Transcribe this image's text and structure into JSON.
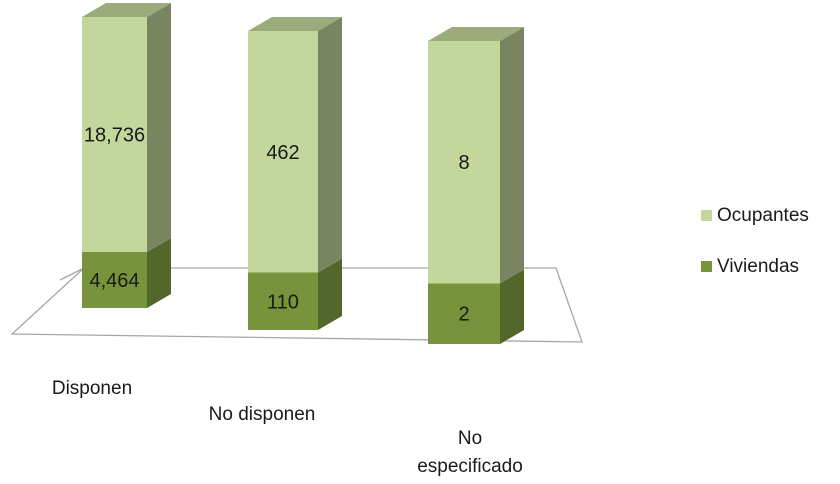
{
  "chart_data": {
    "type": "bar",
    "stacked": true,
    "three_d": true,
    "categories": [
      "Disponen",
      "No disponen",
      "No especificado"
    ],
    "series": [
      {
        "name": "Viviendas",
        "values": [
          4464,
          110,
          2
        ],
        "labels": [
          "4,464",
          "110",
          "2"
        ]
      },
      {
        "name": "Ocupantes",
        "values": [
          18736,
          462,
          8
        ],
        "labels": [
          "18,736",
          "462",
          "8"
        ]
      }
    ],
    "legend_position": "right",
    "grid": false,
    "colors": {
      "Ocupantes": "#c3d69b",
      "Viviendas": "#77933c",
      "floor_stroke": "#a6a6a6"
    }
  }
}
